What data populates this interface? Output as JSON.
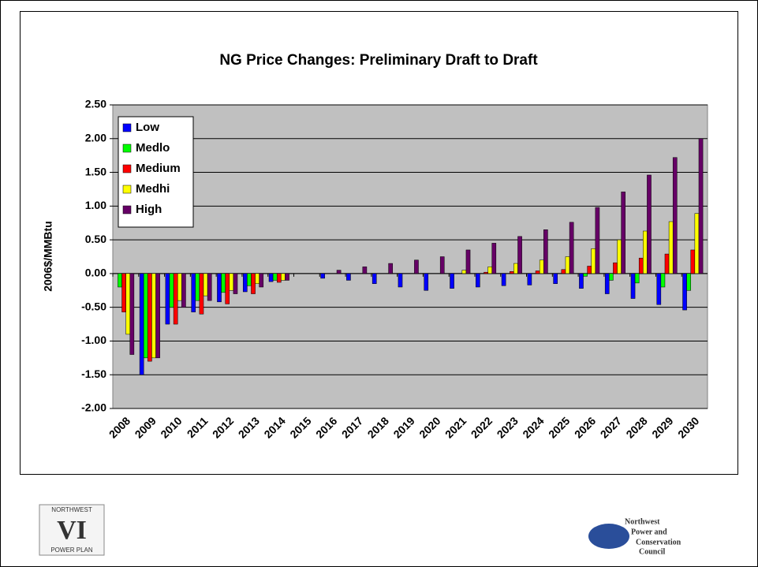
{
  "chart_data": {
    "type": "bar",
    "title": "NG Price Changes: Preliminary Draft to Draft",
    "y_label": "2006$/MMBtu",
    "categories": [
      "2008",
      "2009",
      "2010",
      "2011",
      "2012",
      "2013",
      "2014",
      "2015",
      "2016",
      "2017",
      "2018",
      "2019",
      "2020",
      "2021",
      "2022",
      "2023",
      "2024",
      "2025",
      "2026",
      "2027",
      "2028",
      "2029",
      "2030"
    ],
    "series": [
      {
        "name": "Low",
        "color": "#0000ff",
        "values": [
          0,
          -1.5,
          -0.75,
          -0.57,
          -0.42,
          -0.27,
          -0.12,
          0,
          -0.07,
          -0.1,
          -0.15,
          -0.2,
          -0.25,
          -0.22,
          -0.2,
          -0.18,
          -0.17,
          -0.15,
          -0.22,
          -0.3,
          -0.37,
          -0.46,
          -0.54
        ]
      },
      {
        "name": "Medlo",
        "color": "#00ff00",
        "values": [
          -0.2,
          -1.25,
          -0.5,
          -0.4,
          -0.28,
          -0.18,
          -0.1,
          0,
          0,
          0,
          0,
          0,
          0,
          0,
          0,
          0,
          0,
          0,
          -0.04,
          -0.1,
          -0.14,
          -0.2,
          -0.25
        ]
      },
      {
        "name": "Medium",
        "color": "#ff0000",
        "values": [
          -0.57,
          -1.3,
          -0.75,
          -0.6,
          -0.45,
          -0.3,
          -0.13,
          0,
          0,
          0,
          0,
          0,
          0,
          0,
          0.02,
          0.03,
          0.04,
          0.06,
          0.11,
          0.16,
          0.23,
          0.29,
          0.35
        ]
      },
      {
        "name": "Medhi",
        "color": "#ffff00",
        "values": [
          -0.9,
          -1.25,
          -0.4,
          -0.33,
          -0.25,
          -0.15,
          -0.1,
          0,
          0,
          0,
          0,
          0,
          0,
          0.05,
          0.1,
          0.15,
          0.2,
          0.25,
          0.37,
          0.5,
          0.63,
          0.77,
          0.89
        ]
      },
      {
        "name": "High",
        "color": "#660066",
        "values": [
          -1.2,
          -1.25,
          -0.5,
          -0.4,
          -0.3,
          -0.2,
          -0.1,
          0,
          0.05,
          0.1,
          0.15,
          0.2,
          0.25,
          0.35,
          0.45,
          0.55,
          0.65,
          0.76,
          0.98,
          1.21,
          1.46,
          1.72,
          2.0
        ]
      }
    ],
    "ylim": [
      -2,
      2.5
    ],
    "yticks": [
      {
        "value": 2.5,
        "label": "2.50"
      },
      {
        "value": 2,
        "label": "2.00"
      },
      {
        "value": 1.5,
        "label": "1.50"
      },
      {
        "value": 1,
        "label": "1.00"
      },
      {
        "value": 0.5,
        "label": "0.50"
      },
      {
        "value": 0,
        "label": "0.00"
      },
      {
        "value": -0.5,
        "label": "-0.50"
      },
      {
        "value": -1,
        "label": "-1.00"
      },
      {
        "value": -1.5,
        "label": "-1.50"
      },
      {
        "value": -2,
        "label": "-2.00"
      }
    ],
    "grid": true,
    "plot_color": "#c0c0c0",
    "legend": "top-left"
  },
  "logos": {
    "left": [
      "NORTHWEST",
      "VI",
      "POWER PLAN"
    ],
    "right": [
      "Northwest",
      "Power and",
      "Conservation",
      "Council"
    ]
  }
}
